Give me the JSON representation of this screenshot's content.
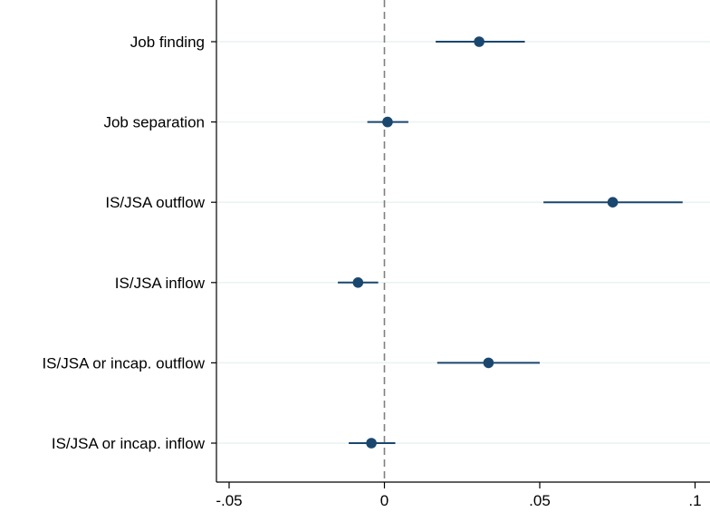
{
  "chart_data": {
    "type": "coefficient-plot",
    "categories": [
      "Job finding",
      "Job separation",
      "IS/JSA outflow",
      "IS/JSA inflow",
      "IS/JSA or incap. outflow",
      "IS/JSA or incap. inflow"
    ],
    "points": [
      {
        "label": "Job finding",
        "estimate": 0.0305,
        "ci_low": 0.0165,
        "ci_high": 0.0452
      },
      {
        "label": "Job separation",
        "estimate": 0.001,
        "ci_low": -0.0055,
        "ci_high": 0.0077
      },
      {
        "label": "IS/JSA outflow",
        "estimate": 0.0735,
        "ci_low": 0.0512,
        "ci_high": 0.096
      },
      {
        "label": "IS/JSA inflow",
        "estimate": -0.0085,
        "ci_low": -0.015,
        "ci_high": -0.002
      },
      {
        "label": "IS/JSA or incap. outflow",
        "estimate": 0.0335,
        "ci_low": 0.017,
        "ci_high": 0.05
      },
      {
        "label": "IS/JSA or incap. inflow",
        "estimate": -0.0042,
        "ci_low": -0.0115,
        "ci_high": 0.0035
      }
    ],
    "x_ticks": [
      -0.05,
      0,
      0.05,
      0.1
    ],
    "x_tick_labels": [
      "-.05",
      "0",
      ".05",
      ".1"
    ],
    "xlim": [
      -0.054,
      0.1
    ],
    "reference_line": 0,
    "grid": "horizontal",
    "colors": {
      "marker": "#1a476f",
      "ci": "#1a476f",
      "grid": "#eaf2f3",
      "reference": "#808080",
      "axis": "#000000"
    }
  }
}
